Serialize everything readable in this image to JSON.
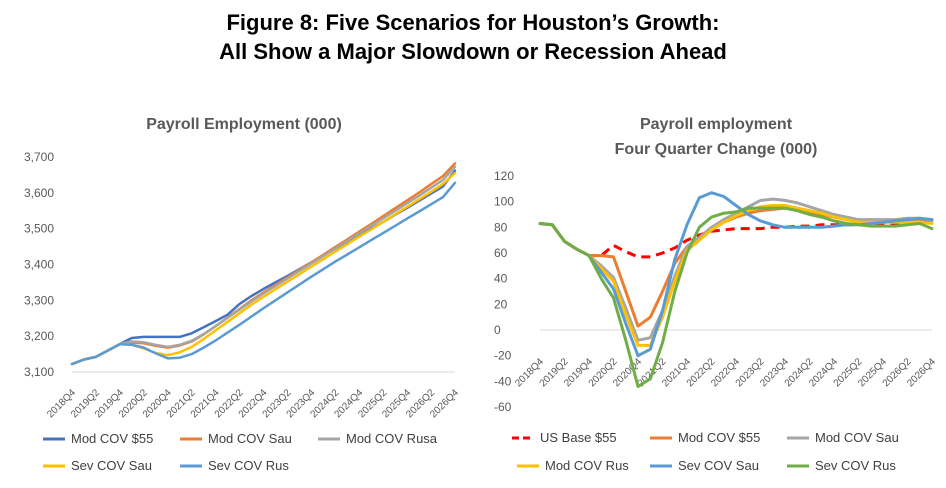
{
  "figure": {
    "title_line1": "Figure 8: Five Scenarios for Houston’s Growth:",
    "title_line2": "All Show a Major Slowdown or Recession Ahead"
  },
  "chart_data": [
    {
      "type": "line",
      "title": "Payroll Employment (000)",
      "xlabel": "",
      "ylabel": "",
      "ylim": [
        3100,
        3700
      ],
      "yticks": [
        "3,100",
        "3,200",
        "3,300",
        "3,400",
        "3,500",
        "3,600",
        "3,700"
      ],
      "x": [
        "2018Q4",
        "2019Q1",
        "2019Q2",
        "2019Q3",
        "2019Q4",
        "2020Q1",
        "2020Q2",
        "2020Q3",
        "2020Q4",
        "2021Q1",
        "2021Q2",
        "2021Q3",
        "2021Q4",
        "2022Q1",
        "2022Q2",
        "2022Q3",
        "2022Q4",
        "2023Q1",
        "2023Q2",
        "2023Q3",
        "2023Q4",
        "2024Q1",
        "2024Q2",
        "2024Q3",
        "2024Q4",
        "2025Q1",
        "2025Q2",
        "2025Q3",
        "2025Q4",
        "2026Q1",
        "2026Q2",
        "2026Q3",
        "2026Q4"
      ],
      "xtick_labels": [
        "2018Q4",
        "2019Q2",
        "2019Q4",
        "2020Q2",
        "2020Q4",
        "2021Q2",
        "2021Q4",
        "2022Q2",
        "2022Q4",
        "2023Q2",
        "2023Q4",
        "2024Q2",
        "2024Q4",
        "2025Q2",
        "2025Q4",
        "2026Q2",
        "2026Q4"
      ],
      "grid": false,
      "legend_position": "bottom",
      "series": [
        {
          "name": "Mod COV $55",
          "color": "#4472C4",
          "values": [
            3122,
            3135,
            3142,
            3160,
            3178,
            3195,
            3198,
            3198,
            3198,
            3198,
            3208,
            3225,
            3242,
            3260,
            3290,
            3312,
            3332,
            3350,
            3368,
            3387,
            3406,
            3425,
            3444,
            3463,
            3481,
            3500,
            3519,
            3539,
            3558,
            3578,
            3598,
            3618,
            3662
          ]
        },
        {
          "name": "Mod COV Sau",
          "color": "#ED7D31",
          "values": [
            3122,
            3135,
            3142,
            3160,
            3178,
            3182,
            3180,
            3173,
            3168,
            3174,
            3185,
            3205,
            3228,
            3252,
            3276,
            3300,
            3322,
            3343,
            3364,
            3385,
            3406,
            3427,
            3449,
            3470,
            3492,
            3513,
            3535,
            3557,
            3579,
            3601,
            3624,
            3647,
            3682
          ]
        },
        {
          "name": "Mod COV Rusa",
          "color": "#A5A5A5",
          "values": [
            3122,
            3135,
            3142,
            3160,
            3178,
            3185,
            3183,
            3176,
            3170,
            3176,
            3187,
            3206,
            3228,
            3251,
            3274,
            3297,
            3319,
            3340,
            3361,
            3382,
            3403,
            3424,
            3445,
            3466,
            3487,
            3508,
            3529,
            3550,
            3571,
            3592,
            3614,
            3636,
            3673
          ]
        },
        {
          "name": "Sev COV Sau",
          "color": "#FFC000",
          "values": [
            3122,
            3135,
            3142,
            3160,
            3178,
            3176,
            3166,
            3153,
            3147,
            3155,
            3170,
            3192,
            3216,
            3240,
            3264,
            3288,
            3310,
            3331,
            3352,
            3373,
            3394,
            3415,
            3436,
            3457,
            3478,
            3498,
            3519,
            3540,
            3561,
            3582,
            3603,
            3625,
            3655
          ]
        },
        {
          "name": "Sev COV Rus",
          "color": "#5B9BD5",
          "values": [
            3122,
            3135,
            3142,
            3160,
            3178,
            3176,
            3168,
            3152,
            3138,
            3140,
            3150,
            3168,
            3188,
            3210,
            3232,
            3255,
            3278,
            3300,
            3322,
            3344,
            3366,
            3387,
            3408,
            3428,
            3448,
            3468,
            3488,
            3508,
            3528,
            3548,
            3568,
            3588,
            3628
          ]
        }
      ]
    },
    {
      "type": "line",
      "title": "Payroll employment",
      "subtitle": "Four Quarter Change (000)",
      "xlabel": "",
      "ylabel": "",
      "ylim": [
        -60,
        120
      ],
      "yticks": [
        "120",
        "100",
        "80",
        "60",
        "40",
        "20",
        "0",
        "-20",
        "-40",
        "-60"
      ],
      "x": [
        "2018Q4",
        "2019Q1",
        "2019Q2",
        "2019Q3",
        "2019Q4",
        "2020Q1",
        "2020Q2",
        "2020Q3",
        "2020Q4",
        "2021Q1",
        "2021Q2",
        "2021Q3",
        "2021Q4",
        "2022Q1",
        "2022Q2",
        "2022Q3",
        "2022Q4",
        "2023Q1",
        "2023Q2",
        "2023Q3",
        "2023Q4",
        "2024Q1",
        "2024Q2",
        "2024Q3",
        "2024Q4",
        "2025Q1",
        "2025Q2",
        "2025Q3",
        "2025Q4",
        "2026Q1",
        "2026Q2",
        "2026Q3",
        "2026Q4"
      ],
      "xtick_labels": [
        "2018Q4",
        "2019Q2",
        "2019Q4",
        "2020Q2",
        "2020Q4",
        "2021Q2",
        "2021Q4",
        "2022Q2",
        "2022Q4",
        "2023Q2",
        "2023Q4",
        "2024Q2",
        "2024Q4",
        "2025Q2",
        "2025Q4",
        "2026Q2",
        "2026Q4"
      ],
      "grid": false,
      "legend_position": "bottom",
      "series": [
        {
          "name": "US Base $55",
          "color": "#FF0000",
          "dashed": true,
          "values": [
            83,
            82,
            69,
            63,
            58,
            58,
            66,
            61,
            57,
            57,
            60,
            64,
            70,
            74,
            77,
            78,
            79,
            79,
            79,
            80,
            80,
            81,
            81,
            82,
            82,
            82,
            82,
            83,
            83,
            83,
            84,
            84,
            84
          ]
        },
        {
          "name": "Mod COV $55",
          "color": "#ED7D31",
          "values": [
            83,
            82,
            69,
            63,
            58,
            58,
            57,
            30,
            3,
            10,
            30,
            52,
            65,
            72,
            78,
            84,
            88,
            91,
            93,
            94,
            95,
            94,
            92,
            90,
            88,
            86,
            85,
            85,
            85,
            85,
            86,
            86,
            86
          ]
        },
        {
          "name": "Mod COV Sau",
          "color": "#A5A5A5",
          "values": [
            83,
            82,
            69,
            63,
            58,
            50,
            41,
            17,
            -8,
            -6,
            15,
            42,
            65,
            72,
            80,
            86,
            91,
            96,
            101,
            102,
            101,
            99,
            96,
            93,
            90,
            88,
            86,
            86,
            86,
            86,
            87,
            87,
            85
          ]
        },
        {
          "name": "Mod COV Rus",
          "color": "#FFC000",
          "values": [
            83,
            82,
            69,
            63,
            58,
            48,
            38,
            12,
            -12,
            -12,
            10,
            38,
            62,
            70,
            78,
            84,
            89,
            93,
            96,
            97,
            97,
            95,
            93,
            91,
            88,
            86,
            84,
            84,
            84,
            84,
            84,
            84,
            83
          ]
        },
        {
          "name": "Sev COV Sau",
          "color": "#5B9BD5",
          "values": [
            83,
            82,
            69,
            63,
            58,
            45,
            32,
            5,
            -20,
            -15,
            15,
            55,
            82,
            103,
            107,
            104,
            97,
            90,
            85,
            82,
            80,
            80,
            80,
            80,
            81,
            82,
            82,
            83,
            84,
            85,
            86,
            87,
            86
          ]
        },
        {
          "name": "Sev COV Rus",
          "color": "#70AD47",
          "values": [
            83,
            82,
            69,
            63,
            58,
            40,
            25,
            -8,
            -44,
            -38,
            -10,
            30,
            60,
            80,
            88,
            91,
            92,
            95,
            95,
            95,
            95,
            93,
            90,
            88,
            85,
            83,
            82,
            81,
            81,
            81,
            82,
            83,
            79
          ]
        }
      ]
    }
  ]
}
